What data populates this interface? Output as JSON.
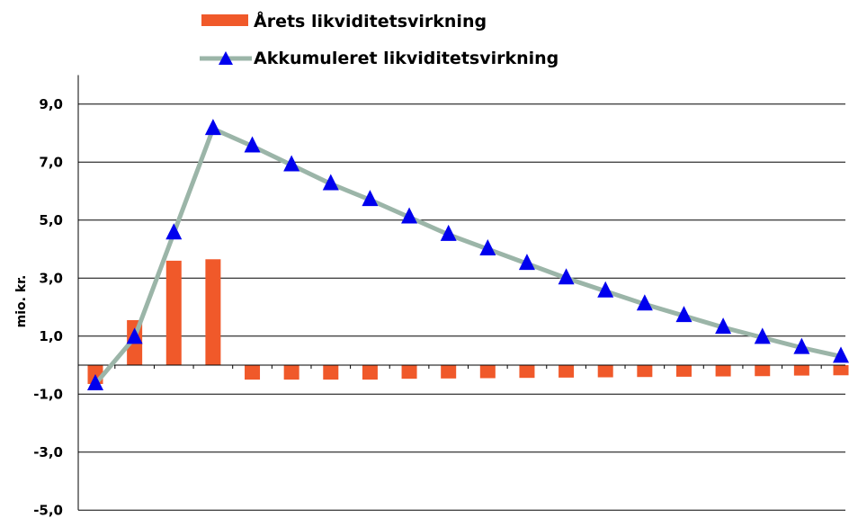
{
  "chart_data": {
    "type": "bar",
    "ylabel": "mio. kr.",
    "ylim": [
      -5.0,
      10.0
    ],
    "yticks": [
      "9,0",
      "7,0",
      "5,0",
      "3,0",
      "1,0",
      "-1,0",
      "-3,0",
      "-5,0"
    ],
    "ytick_values": [
      9,
      7,
      5,
      3,
      1,
      -1,
      -3,
      -5
    ],
    "grid": true,
    "legend_placement": "top",
    "series": [
      {
        "name": "Årets likviditetsvirkning",
        "type": "bar",
        "color": "#f0592a",
        "values": [
          -0.65,
          1.55,
          3.6,
          3.65,
          -0.5,
          -0.5,
          -0.5,
          -0.5,
          -0.47,
          -0.46,
          -0.45,
          -0.44,
          -0.43,
          -0.42,
          -0.41,
          -0.4,
          -0.39,
          -0.38,
          -0.36,
          -0.35
        ]
      },
      {
        "name": "Akkumuleret likviditetsvirkning",
        "type": "line",
        "color": "#9bb5a8",
        "marker_color": "#0000ee",
        "values": [
          -0.65,
          0.95,
          4.55,
          8.15,
          7.55,
          6.9,
          6.25,
          5.7,
          5.1,
          4.5,
          4.0,
          3.5,
          3.0,
          2.55,
          2.1,
          1.7,
          1.3,
          0.95,
          0.6,
          0.3
        ]
      }
    ]
  }
}
